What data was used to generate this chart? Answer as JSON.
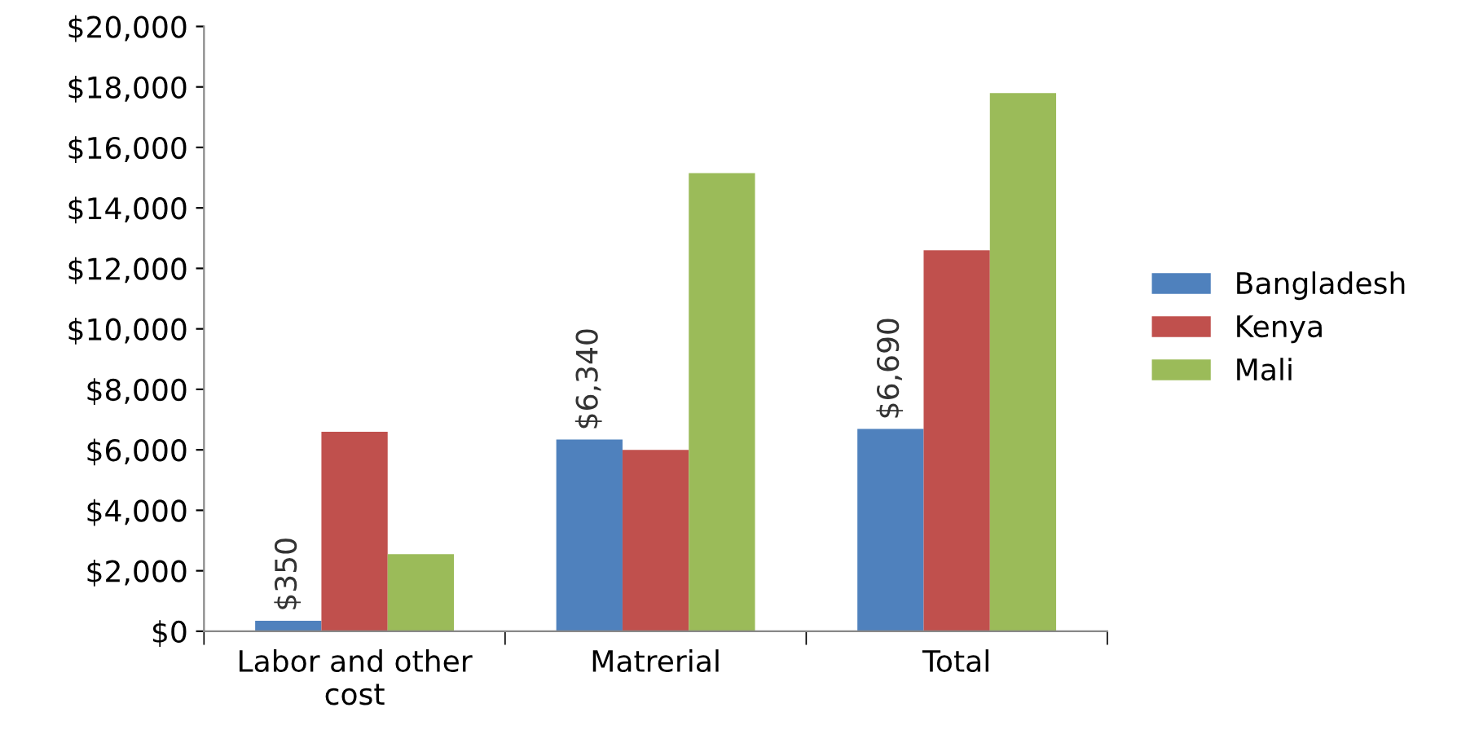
{
  "chart_data": {
    "type": "bar",
    "categories": [
      "Labor and other\ncost",
      "Matrerial",
      "Total"
    ],
    "series": [
      {
        "name": "Bangladesh",
        "color": "#4f81bd",
        "values": [
          350,
          6340,
          6690
        ],
        "value_labels": [
          "$350",
          "$6,340",
          "$6,690"
        ]
      },
      {
        "name": "Kenya",
        "color": "#c0504d",
        "values": [
          6600,
          6000,
          12600
        ]
      },
      {
        "name": "Mali",
        "color": "#9bbb59",
        "values": [
          2550,
          15150,
          17800
        ]
      }
    ],
    "ylim": [
      0,
      20000
    ],
    "yticks": [
      {
        "value": 0,
        "label": "$0"
      },
      {
        "value": 2000,
        "label": "$2,000"
      },
      {
        "value": 4000,
        "label": "$4,000"
      },
      {
        "value": 6000,
        "label": "$6,000"
      },
      {
        "value": 8000,
        "label": "$8,000"
      },
      {
        "value": 10000,
        "label": "$10,000"
      },
      {
        "value": 12000,
        "label": "$12,000"
      },
      {
        "value": 14000,
        "label": "$14,000"
      },
      {
        "value": 16000,
        "label": "$16,000"
      },
      {
        "value": 18000,
        "label": "$18,000"
      },
      {
        "value": 20000,
        "label": "$20,000"
      }
    ],
    "grid": false,
    "legend": "right"
  }
}
